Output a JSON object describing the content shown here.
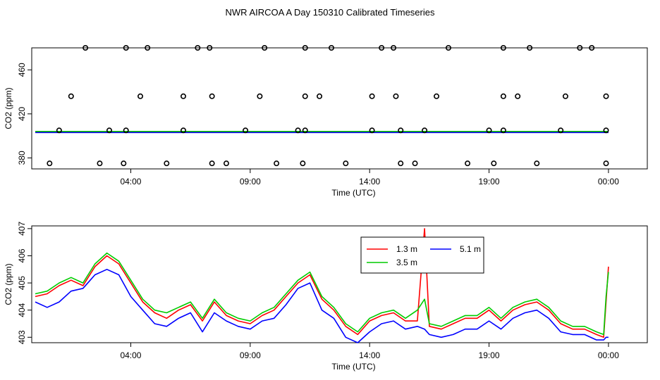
{
  "title": "NWR AIRCOA A  Day 150310  Calibrated Timeseries",
  "chart_data": [
    {
      "type": "scatter",
      "title": "",
      "xlabel": "Time (UTC)",
      "ylabel": "CO2 (ppm)",
      "xlim": [
        0,
        24.8
      ],
      "ylim": [
        370,
        480
      ],
      "x_ticks": [
        4,
        9,
        14,
        19,
        24
      ],
      "x_tick_labels": [
        "04:00",
        "09:00",
        "14:00",
        "19:00",
        "00:00"
      ],
      "y_ticks": [
        380,
        420,
        460
      ],
      "y_tick_labels": [
        "380",
        "420",
        "460"
      ],
      "points": {
        "x": [
          2.1,
          3.8,
          4.7,
          6.8,
          7.3,
          9.6,
          11.3,
          12.4,
          14.5,
          15.0,
          17.3,
          19.6,
          20.7,
          22.8,
          23.3,
          1.5,
          4.4,
          6.2,
          7.4,
          9.4,
          11.3,
          11.9,
          14.1,
          15.1,
          16.8,
          19.6,
          20.2,
          22.2,
          23.9,
          1.0,
          3.1,
          3.8,
          6.2,
          8.8,
          11.0,
          11.3,
          14.1,
          15.3,
          16.3,
          19.0,
          19.6,
          22.0,
          23.9,
          0.6,
          2.7,
          3.7,
          5.5,
          7.4,
          8.0,
          10.1,
          11.2,
          13.0,
          15.3,
          15.9,
          18.1,
          19.2,
          21.0,
          23.9
        ],
        "y": [
          480,
          480,
          480,
          480,
          480,
          480,
          480,
          480,
          480,
          480,
          480,
          480,
          480,
          480,
          480,
          436,
          436,
          436,
          436,
          436,
          436,
          436,
          436,
          436,
          436,
          436,
          436,
          436,
          436,
          405,
          405,
          405,
          405,
          405,
          405,
          405,
          405,
          405,
          405,
          405,
          405,
          405,
          405,
          375,
          375,
          375,
          375,
          375,
          375,
          375,
          375,
          375,
          375,
          375,
          375,
          375,
          375,
          375
        ]
      },
      "series": [
        {
          "name": "1.3 m",
          "color": "#ff0000",
          "x": [
            0,
            24
          ],
          "values": [
            403.5,
            403.5
          ]
        },
        {
          "name": "3.5 m",
          "color": "#00cc00",
          "x": [
            0,
            24
          ],
          "values": [
            404.0,
            404.0
          ]
        },
        {
          "name": "5.1 m",
          "color": "#0000ff",
          "x": [
            0,
            24
          ],
          "values": [
            403.0,
            403.0
          ]
        }
      ]
    },
    {
      "type": "line",
      "title": "",
      "xlabel": "Time (UTC)",
      "ylabel": "CO2 (ppm)",
      "xlim": [
        0,
        24.8
      ],
      "ylim": [
        402.8,
        407.1
      ],
      "x_ticks": [
        4,
        9,
        14,
        19,
        24
      ],
      "x_tick_labels": [
        "04:00",
        "09:00",
        "14:00",
        "19:00",
        "00:00"
      ],
      "y_ticks": [
        403,
        404,
        405,
        406,
        407
      ],
      "y_tick_labels": [
        "403",
        "404",
        "405",
        "406",
        "407"
      ],
      "legend": {
        "position": "top-center",
        "entries": [
          "1.3 m",
          "3.5 m",
          "5.1 m"
        ]
      },
      "x": [
        0.0,
        0.5,
        1.0,
        1.5,
        2.0,
        2.5,
        3.0,
        3.5,
        4.0,
        4.5,
        5.0,
        5.5,
        6.0,
        6.5,
        7.0,
        7.5,
        8.0,
        8.5,
        9.0,
        9.5,
        10.0,
        10.5,
        11.0,
        11.5,
        12.0,
        12.5,
        13.0,
        13.5,
        14.0,
        14.5,
        15.0,
        15.5,
        16.0,
        16.3,
        16.5,
        17.0,
        17.5,
        18.0,
        18.5,
        19.0,
        19.5,
        20.0,
        20.5,
        21.0,
        21.5,
        22.0,
        22.5,
        23.0,
        23.5,
        23.8,
        23.9,
        24.0
      ],
      "series": [
        {
          "name": "1.3 m",
          "color": "#ff0000",
          "values": [
            404.5,
            404.6,
            404.9,
            405.1,
            404.9,
            405.6,
            406.0,
            405.7,
            405.0,
            404.3,
            403.9,
            403.7,
            404.0,
            404.2,
            403.6,
            404.3,
            403.8,
            403.6,
            403.5,
            403.8,
            404.0,
            404.5,
            405.0,
            405.3,
            404.4,
            404.0,
            403.4,
            403.1,
            403.6,
            403.8,
            403.9,
            403.6,
            403.6,
            407.0,
            403.4,
            403.3,
            403.5,
            403.7,
            403.7,
            404.0,
            403.6,
            404.0,
            404.2,
            404.3,
            404.0,
            403.5,
            403.3,
            403.3,
            403.1,
            403.0,
            404.3,
            405.6
          ]
        },
        {
          "name": "3.5 m",
          "color": "#00cc00",
          "values": [
            404.6,
            404.7,
            405.0,
            405.2,
            405.0,
            405.7,
            406.1,
            405.8,
            405.1,
            404.4,
            404.0,
            403.9,
            404.1,
            404.3,
            403.7,
            404.4,
            403.9,
            403.7,
            403.6,
            403.9,
            404.1,
            404.6,
            405.1,
            405.4,
            404.5,
            404.1,
            403.5,
            403.2,
            403.7,
            403.9,
            404.0,
            403.7,
            404.0,
            404.4,
            403.5,
            403.4,
            403.6,
            403.8,
            403.8,
            404.1,
            403.7,
            404.1,
            404.3,
            404.4,
            404.1,
            403.6,
            403.4,
            403.4,
            403.2,
            403.1,
            404.5,
            405.4
          ]
        },
        {
          "name": "5.1 m",
          "color": "#0000ff",
          "values": [
            404.3,
            404.1,
            404.3,
            404.7,
            404.8,
            405.3,
            405.5,
            405.3,
            404.5,
            404.0,
            403.5,
            403.4,
            403.7,
            403.9,
            403.2,
            403.9,
            403.6,
            403.4,
            403.3,
            403.6,
            403.7,
            404.2,
            404.8,
            405.0,
            404.0,
            403.7,
            403.0,
            402.8,
            403.2,
            403.5,
            403.6,
            403.3,
            403.4,
            403.3,
            403.1,
            403.0,
            403.1,
            403.3,
            403.3,
            403.6,
            403.3,
            403.7,
            403.9,
            404.0,
            403.7,
            403.2,
            403.1,
            403.1,
            402.9,
            402.9,
            403.0,
            403.0
          ]
        }
      ]
    }
  ]
}
